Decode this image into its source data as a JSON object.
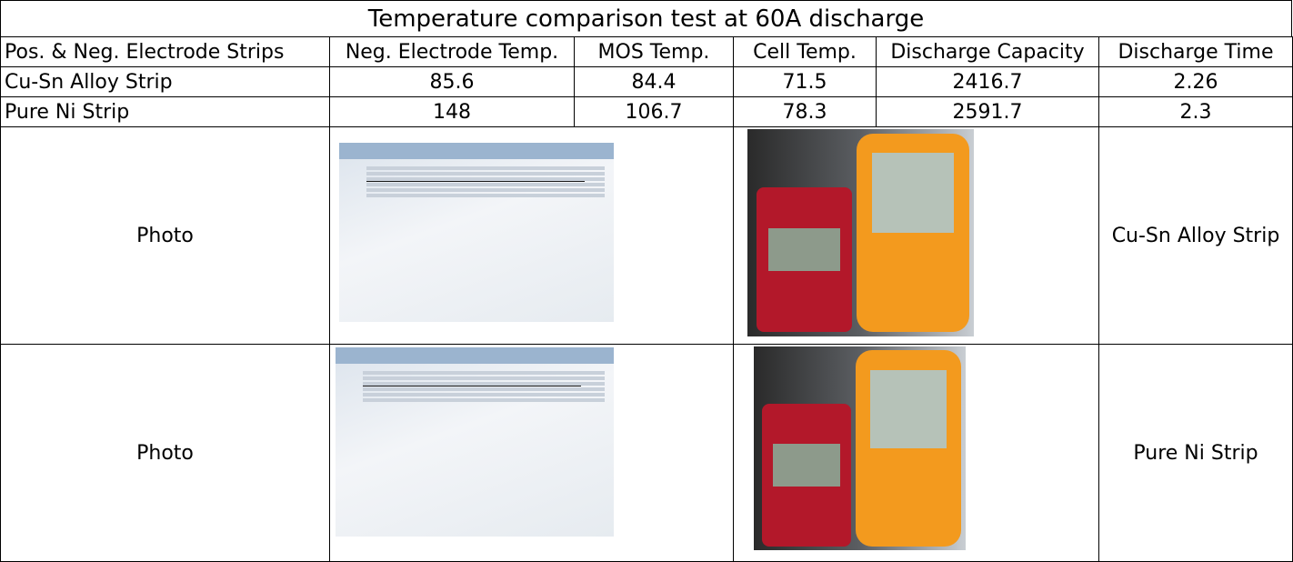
{
  "title": "Temperature comparison test at 60A discharge",
  "table": {
    "header": [
      "Pos. & Neg. Electrode Strips",
      "Neg. Electrode Temp.",
      "MOS Temp.",
      "Cell Temp.",
      "Discharge Capacity",
      "Discharge Time"
    ],
    "rows": [
      [
        "Cu-Sn Alloy Strip",
        85.6,
        84.4,
        71.5,
        2416.7,
        2.26
      ],
      [
        "Pure Ni Strip",
        148,
        106.7,
        78.3,
        2591.7,
        2.3
      ]
    ]
  },
  "photo_rows": [
    {
      "label": "Photo",
      "caption": "Cu-Sn Alloy Strip"
    },
    {
      "label": "Photo",
      "caption": "Pure Ni Strip"
    }
  ]
}
